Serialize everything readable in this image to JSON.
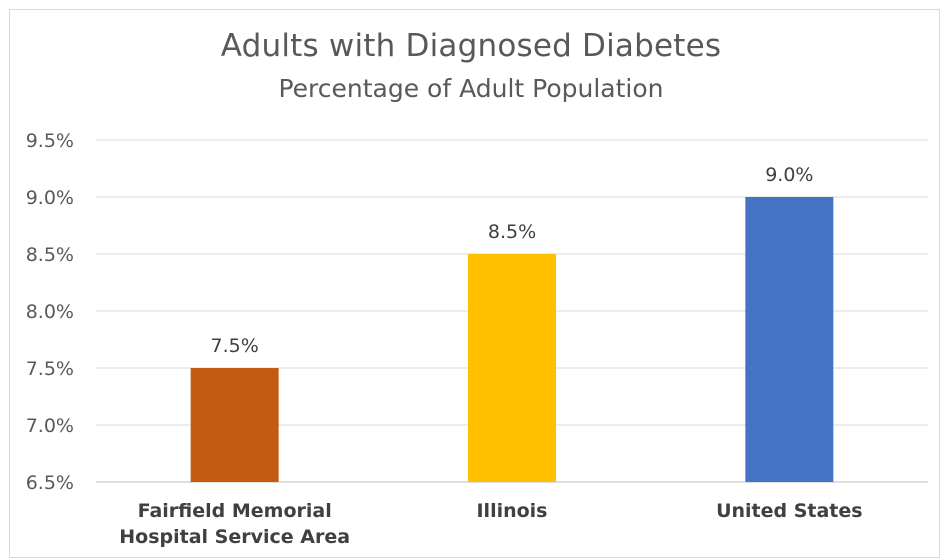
{
  "chart_data": {
    "type": "bar",
    "title": "Adults with Diagnosed Diabetes",
    "subtitle": "Percentage of Adult Population",
    "xlabel": "",
    "ylabel": "",
    "ylim": [
      6.5,
      9.5
    ],
    "yticks": [
      "6.5%",
      "7.0%",
      "7.5%",
      "8.0%",
      "8.5%",
      "9.0%",
      "9.5%"
    ],
    "ytick_values": [
      6.5,
      7.0,
      7.5,
      8.0,
      8.5,
      9.0,
      9.5
    ],
    "grid": true,
    "categories": [
      [
        "Fairfield Memorial",
        "Hospital Service Area"
      ],
      [
        "Illinois"
      ],
      [
        "United States"
      ]
    ],
    "values": [
      7.5,
      8.5,
      9.0
    ],
    "data_labels": [
      "7.5%",
      "8.5%",
      "9.0%"
    ],
    "colors": [
      "#c55a11",
      "#ffc000",
      "#4472c4"
    ]
  }
}
